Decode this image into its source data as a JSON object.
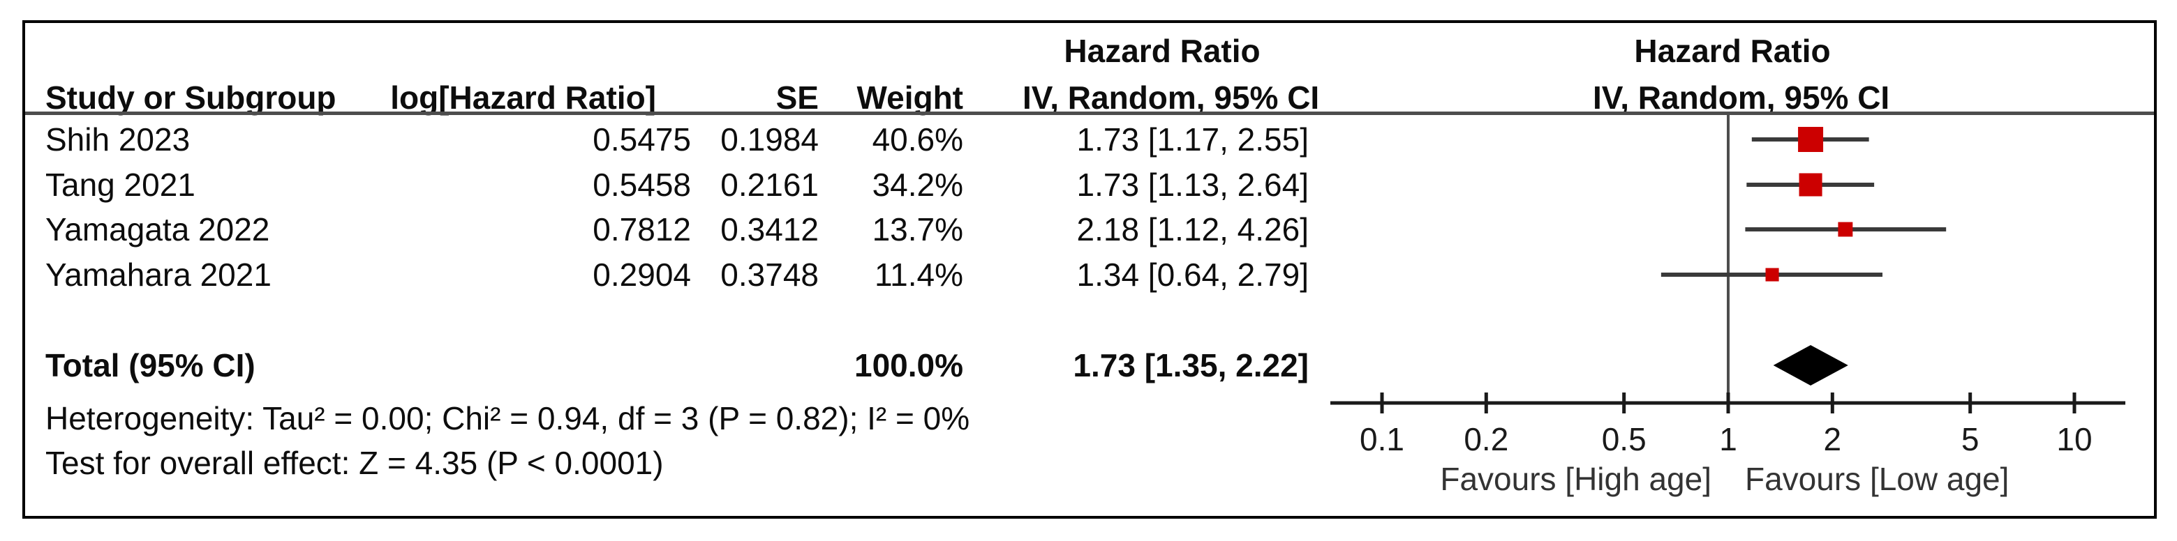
{
  "header": {
    "col_study": "Study or Subgroup",
    "col_log_hr": "log[Hazard Ratio]",
    "col_se": "SE",
    "col_weight": "Weight",
    "text_col_line1": "Hazard Ratio",
    "text_col_line2": "IV, Random, 95% CI",
    "plot_col_line1": "Hazard Ratio",
    "plot_col_line2": "IV, Random, 95% CI"
  },
  "studies": [
    {
      "name": "Shih 2023",
      "log_hr": "0.5475",
      "se": "0.1984",
      "weight": "40.6%",
      "hr_ci": "1.73 [1.17, 2.55]"
    },
    {
      "name": "Tang 2021",
      "log_hr": "0.5458",
      "se": "0.2161",
      "weight": "34.2%",
      "hr_ci": "1.73 [1.13, 2.64]"
    },
    {
      "name": "Yamagata 2022",
      "log_hr": "0.7812",
      "se": "0.3412",
      "weight": "13.7%",
      "hr_ci": "2.18 [1.12, 4.26]"
    },
    {
      "name": "Yamahara 2021",
      "log_hr": "0.2904",
      "se": "0.3748",
      "weight": "11.4%",
      "hr_ci": "1.34 [0.64, 2.79]"
    }
  ],
  "total": {
    "label": "Total (95% CI)",
    "weight": "100.0%",
    "hr_ci": "1.73 [1.35, 2.22]"
  },
  "footnotes": {
    "heterogeneity": "Heterogeneity: Tau² = 0.00; Chi² = 0.94, df = 3 (P = 0.82); I² = 0%",
    "overall_effect": "Test for overall effect: Z = 4.35 (P < 0.0001)"
  },
  "chart_data": {
    "type": "forest",
    "x_scale": "log10",
    "axis_ticks": [
      0.1,
      0.2,
      0.5,
      1,
      2,
      5,
      10
    ],
    "axis_range": [
      0.07,
      14
    ],
    "reference_line": 1,
    "favours_left": "Favours [High age]",
    "favours_right": "Favours [Low age]",
    "studies": [
      {
        "name": "Shih 2023",
        "hr": 1.73,
        "ci_low": 1.17,
        "ci_high": 2.55,
        "weight_pct": 40.6
      },
      {
        "name": "Tang 2021",
        "hr": 1.73,
        "ci_low": 1.13,
        "ci_high": 2.64,
        "weight_pct": 34.2
      },
      {
        "name": "Yamagata 2022",
        "hr": 2.18,
        "ci_low": 1.12,
        "ci_high": 4.26,
        "weight_pct": 13.7
      },
      {
        "name": "Yamahara 2021",
        "hr": 1.34,
        "ci_low": 0.64,
        "ci_high": 2.79,
        "weight_pct": 11.4
      }
    ],
    "total": {
      "hr": 1.73,
      "ci_low": 1.35,
      "ci_high": 2.22,
      "weight_pct": 100.0
    },
    "colors": {
      "square": "#cc0000",
      "diamond": "#000000",
      "ci_line": "#3a3a3a",
      "axis": "#1a1a1a",
      "ref_line": "#4d4d4d",
      "favours_text": "#333333"
    }
  }
}
